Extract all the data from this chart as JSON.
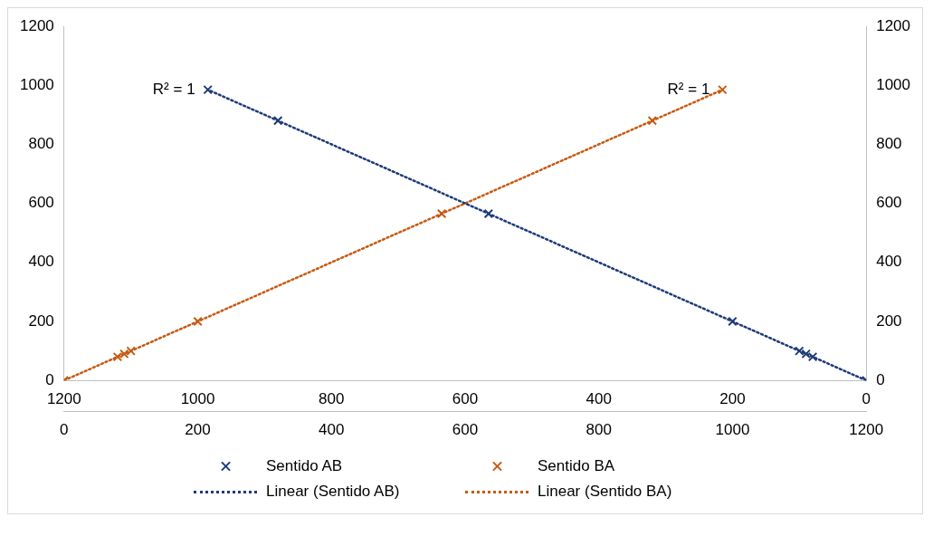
{
  "chart_data": {
    "type": "scatter",
    "marker": "cross",
    "grid": false,
    "legend": "bottom",
    "xlim": [
      0,
      1200
    ],
    "xticks": [
      0,
      200,
      400,
      600,
      800,
      1000,
      1200
    ],
    "x2lim": [
      1200,
      0
    ],
    "x2ticks": [
      1200,
      1000,
      800,
      600,
      400,
      200,
      0
    ],
    "ylim": [
      0,
      1200
    ],
    "yticks": [
      0,
      200,
      400,
      600,
      800,
      1000,
      1200
    ],
    "y2lim": [
      0,
      1200
    ],
    "y2ticks": [
      0,
      200,
      400,
      600,
      800,
      1000,
      1200
    ],
    "series": [
      {
        "name": "Sentido AB",
        "color": "#1f3a7a",
        "axis": "x2",
        "x": [
          0,
          80,
          90,
          100,
          200,
          565,
          880,
          985
        ],
        "values": [
          0,
          80,
          90,
          100,
          200,
          565,
          880,
          985
        ]
      },
      {
        "name": "Sentido BA",
        "color": "#c55a11",
        "x": [
          0,
          80,
          90,
          100,
          200,
          565,
          880,
          985
        ],
        "values": [
          0,
          80,
          90,
          100,
          200,
          565,
          880,
          985
        ]
      },
      {
        "name": "Linear (Sentido AB)",
        "type": "line",
        "line_style": "dotted",
        "marker": "none",
        "color": "#1f3a7a",
        "axis": "x2",
        "x": [
          0,
          985
        ],
        "values": [
          0,
          985
        ]
      },
      {
        "name": "Linear (Sentido BA)",
        "type": "line",
        "line_style": "dotted",
        "marker": "none",
        "color": "#c55a11",
        "x": [
          0,
          985
        ],
        "values": [
          0,
          985
        ]
      }
    ],
    "annotations": [
      "R² = 1",
      "R² = 1"
    ]
  }
}
